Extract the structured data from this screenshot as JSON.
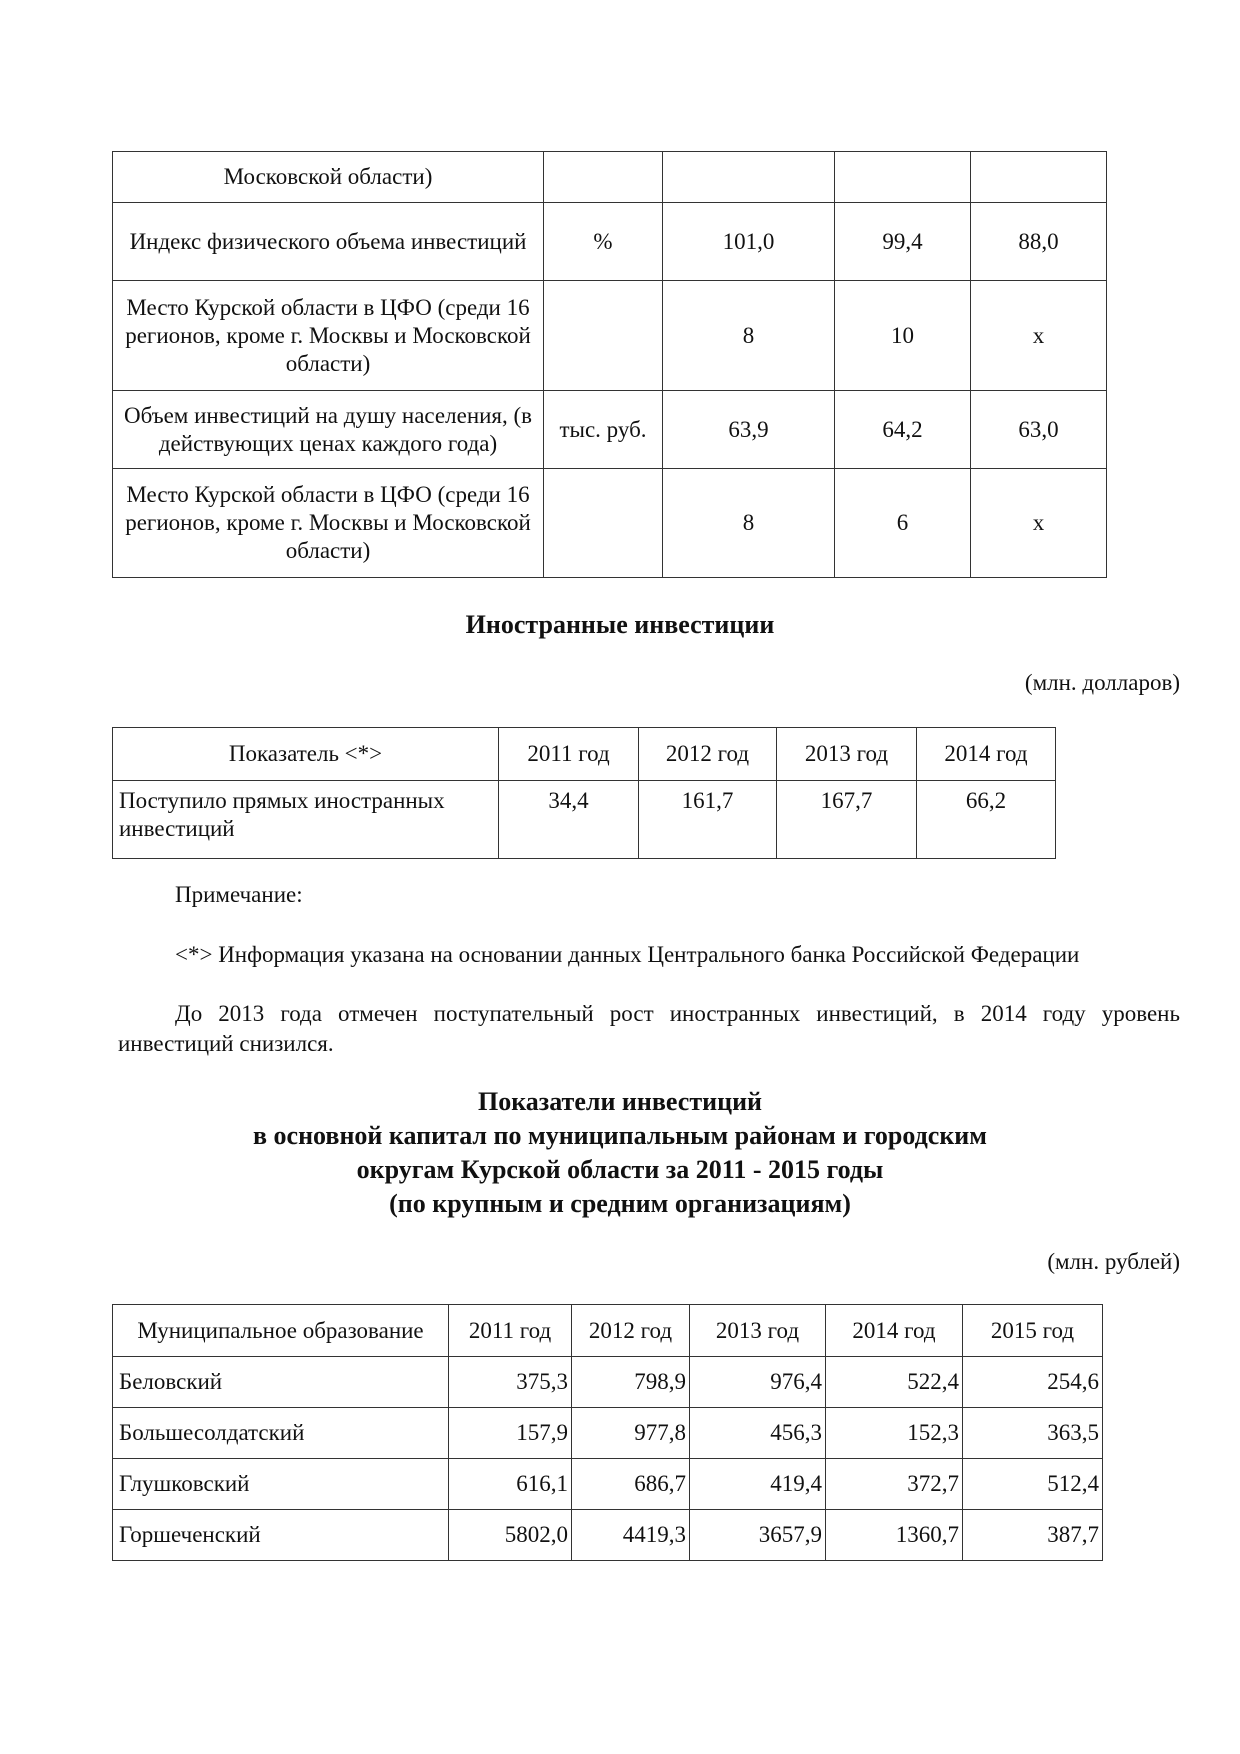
{
  "table1": {
    "rows": [
      {
        "label": "Московской области)",
        "unit": "",
        "v1": "",
        "v2": "",
        "v3": ""
      },
      {
        "label": "Индекс физического объема инвестиций",
        "unit": "%",
        "v1": "101,0",
        "v2": "99,4",
        "v3": "88,0"
      },
      {
        "label": "Место Курской области в ЦФО (среди 16 регионов, кроме г. Москвы и Московской области)",
        "unit": "",
        "v1": "8",
        "v2": "10",
        "v3": "x"
      },
      {
        "label": "Объем инвестиций на душу населения, (в действующих ценах каждого года)",
        "unit": "тыс. руб.",
        "v1": "63,9",
        "v2": "64,2",
        "v3": "63,0"
      },
      {
        "label": "Место Курской области в ЦФО (среди 16 регионов, кроме г. Москвы и Московской области)",
        "unit": "",
        "v1": "8",
        "v2": "6",
        "v3": "x"
      }
    ]
  },
  "foreign": {
    "title": "Иностранные инвестиции",
    "unit": "(млн. долларов)",
    "headers": [
      "Показатель <*>",
      "2011 год",
      "2012 год",
      "2013 год",
      "2014 год"
    ],
    "row": [
      "Поступило прямых иностранных инвестиций",
      "34,4",
      "161,7",
      "167,7",
      "66,2"
    ],
    "note_label": "Примечание:",
    "note": "<*> Информация указана на основании данных Центрального банка Российской Федерации",
    "paragraph": "До 2013 года отмечен поступательный рост иностранных инвестиций, в 2014 году уровень инвестиций снизился."
  },
  "municipal": {
    "title_lines": [
      "Показатели инвестиций",
      "в основной капитал по муниципальным районам и городским",
      "округам Курской области за 2011 - 2015 годы",
      "(по крупным и средним организациям)"
    ],
    "unit": "(млн. рублей)",
    "headers": [
      "Муниципальное образование",
      "2011 год",
      "2012 год",
      "2013 год",
      "2014 год",
      "2015 год"
    ],
    "rows": [
      [
        "Беловский",
        "375,3",
        "798,9",
        "976,4",
        "522,4",
        "254,6"
      ],
      [
        "Большесолдатский",
        "157,9",
        "977,8",
        "456,3",
        "152,3",
        "363,5"
      ],
      [
        "Глушковский",
        "616,1",
        "686,7",
        "419,4",
        "372,7",
        "512,4"
      ],
      [
        "Горшеченский",
        "5802,0",
        "4419,3",
        "3657,9",
        "1360,7",
        "387,7"
      ]
    ]
  }
}
